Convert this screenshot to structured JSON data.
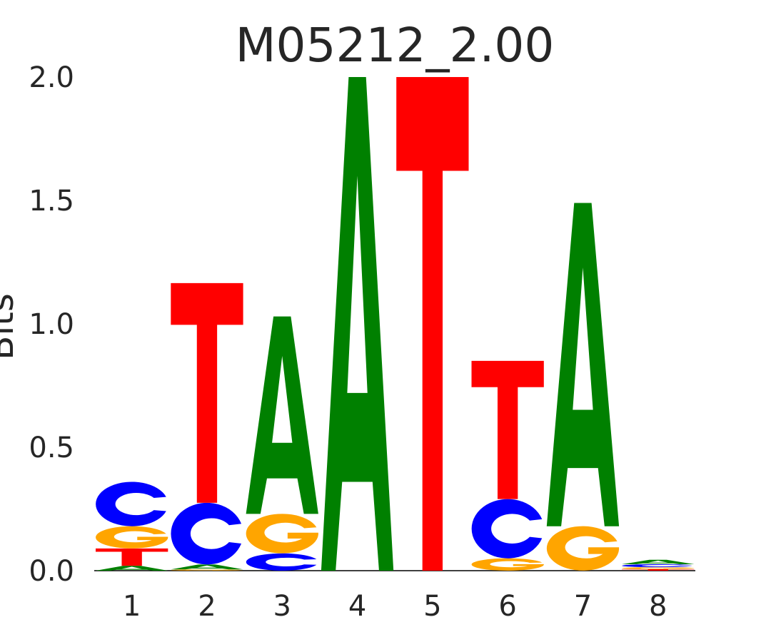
{
  "chart_data": {
    "type": "sequence-logo",
    "title": "M05212_2.00",
    "ylabel": "Bits",
    "xlabel": "",
    "ylim": [
      0,
      2
    ],
    "yticks": [
      "0.0",
      "0.5",
      "1.0",
      "1.5",
      "2.0"
    ],
    "categories": [
      "1",
      "2",
      "3",
      "4",
      "5",
      "6",
      "7",
      "8"
    ],
    "grid": false,
    "colors": {
      "A": "#008000",
      "C": "#0000ff",
      "G": "#ffa500",
      "T": "#ff0000"
    },
    "positions": [
      {
        "pos": "1",
        "letters": [
          {
            "base": "A",
            "bits": 0.02
          },
          {
            "base": "T",
            "bits": 0.07
          },
          {
            "base": "G",
            "bits": 0.09
          },
          {
            "base": "C",
            "bits": 0.18
          }
        ]
      },
      {
        "pos": "2",
        "letters": [
          {
            "base": "G",
            "bits": 0.005
          },
          {
            "base": "A",
            "bits": 0.02
          },
          {
            "base": "C",
            "bits": 0.25
          },
          {
            "base": "T",
            "bits": 0.89
          }
        ]
      },
      {
        "pos": "3",
        "letters": [
          {
            "base": "C",
            "bits": 0.07
          },
          {
            "base": "G",
            "bits": 0.16
          },
          {
            "base": "A",
            "bits": 0.8
          }
        ]
      },
      {
        "pos": "4",
        "letters": [
          {
            "base": "A",
            "bits": 2.0
          }
        ]
      },
      {
        "pos": "5",
        "letters": [
          {
            "base": "T",
            "bits": 2.0
          }
        ]
      },
      {
        "pos": "6",
        "letters": [
          {
            "base": "G",
            "bits": 0.05
          },
          {
            "base": "C",
            "bits": 0.24
          },
          {
            "base": "T",
            "bits": 0.56
          }
        ]
      },
      {
        "pos": "7",
        "letters": [
          {
            "base": "G",
            "bits": 0.18
          },
          {
            "base": "A",
            "bits": 1.31
          }
        ]
      },
      {
        "pos": "8",
        "letters": [
          {
            "base": "T",
            "bits": 0.006
          },
          {
            "base": "G",
            "bits": 0.008
          },
          {
            "base": "C",
            "bits": 0.012
          },
          {
            "base": "A",
            "bits": 0.018
          }
        ]
      }
    ]
  }
}
